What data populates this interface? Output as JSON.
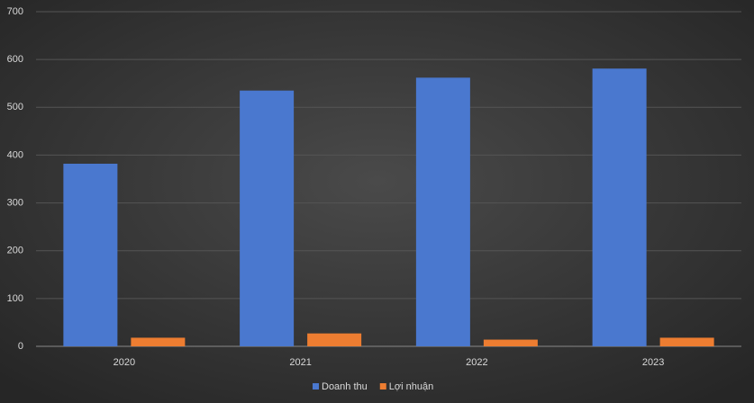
{
  "chart_data": {
    "type": "bar",
    "categories": [
      "2020",
      "2021",
      "2022",
      "2023"
    ],
    "series": [
      {
        "name": "Doanh thu",
        "color": "#4a78cf",
        "values": [
          382,
          535,
          562,
          581
        ]
      },
      {
        "name": "Lợi nhuận",
        "color": "#ed7d31",
        "values": [
          18,
          27,
          14,
          18
        ]
      }
    ],
    "ylim": [
      0,
      700
    ],
    "yticks": [
      0,
      100,
      200,
      300,
      400,
      500,
      600,
      700
    ],
    "grid": true,
    "legend": "bottom"
  }
}
